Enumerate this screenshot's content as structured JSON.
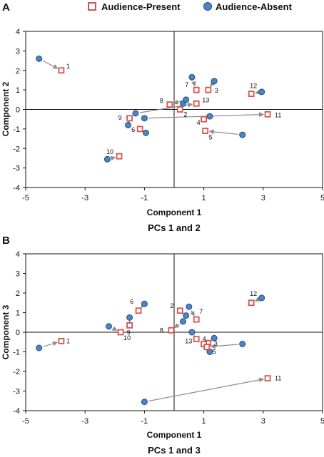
{
  "legend": [
    {
      "name": "Audience-Present",
      "marker": "square",
      "color": "#d9534f"
    },
    {
      "name": "Audience-Absent",
      "marker": "circle",
      "color": "#2e6da4"
    }
  ],
  "colors": {
    "present_stroke": "#d9534f",
    "absent_fill": "#4a86c5",
    "absent_stroke": "#1f4e7a",
    "arrow": "#8c8c8c",
    "axis": "#111111"
  },
  "chart_data": [
    {
      "type": "scatter",
      "panel": "A",
      "caption": "PCs 1 and 2",
      "xlabel": "Component 1",
      "ylabel": "Component 2",
      "xlim": [
        -5,
        5
      ],
      "ylim": [
        -4,
        4
      ],
      "xticks": [
        -5,
        -3,
        -1,
        1,
        3,
        5
      ],
      "yticks": [
        -4,
        -3,
        -2,
        -1,
        0,
        1,
        2,
        3,
        4
      ],
      "grid": false,
      "series": [
        {
          "name": "Audience-Absent",
          "points": [
            {
              "id": "1",
              "x": -4.55,
              "y": 2.6
            },
            {
              "id": "2",
              "x": 0.3,
              "y": 0.3
            },
            {
              "id": "3",
              "x": 1.35,
              "y": 1.45
            },
            {
              "id": "4",
              "x": 1.2,
              "y": -0.35
            },
            {
              "id": "5",
              "x": 2.3,
              "y": -1.3
            },
            {
              "id": "6",
              "x": -0.95,
              "y": -1.2
            },
            {
              "id": "7",
              "x": 0.6,
              "y": 1.65
            },
            {
              "id": "8",
              "x": 0.4,
              "y": 0.5
            },
            {
              "id": "9",
              "x": -1.55,
              "y": -0.8
            },
            {
              "id": "10",
              "x": -2.25,
              "y": -2.55
            },
            {
              "id": "11",
              "x": -1.0,
              "y": -0.45
            },
            {
              "id": "12",
              "x": 2.95,
              "y": 0.9
            },
            {
              "id": "13",
              "x": -1.3,
              "y": -0.2
            }
          ]
        },
        {
          "name": "Audience-Present",
          "points": [
            {
              "id": "1",
              "x": -3.8,
              "y": 2.0
            },
            {
              "id": "2",
              "x": 0.2,
              "y": 0.0
            },
            {
              "id": "3",
              "x": 1.15,
              "y": 1.0
            },
            {
              "id": "4",
              "x": 1.0,
              "y": -0.5
            },
            {
              "id": "5",
              "x": 1.05,
              "y": -1.1
            },
            {
              "id": "6",
              "x": -1.15,
              "y": -1.0
            },
            {
              "id": "7",
              "x": 0.75,
              "y": 1.0
            },
            {
              "id": "8",
              "x": -0.15,
              "y": 0.25
            },
            {
              "id": "9",
              "x": -1.5,
              "y": -0.45
            },
            {
              "id": "10",
              "x": -1.85,
              "y": -2.4
            },
            {
              "id": "11",
              "x": 3.15,
              "y": -0.25
            },
            {
              "id": "12",
              "x": 2.6,
              "y": 0.8
            },
            {
              "id": "13",
              "x": 0.75,
              "y": 0.3
            }
          ]
        }
      ]
    },
    {
      "type": "scatter",
      "panel": "B",
      "caption": "PCs 1 and 3",
      "xlabel": "Component 1",
      "ylabel": "Component 3",
      "xlim": [
        -5,
        5
      ],
      "ylim": [
        -4,
        4
      ],
      "xticks": [
        -5,
        -3,
        -1,
        1,
        3,
        5
      ],
      "yticks": [
        -4,
        -3,
        -2,
        -1,
        0,
        1,
        2,
        3,
        4
      ],
      "grid": false,
      "series": [
        {
          "name": "Audience-Absent",
          "points": [
            {
              "id": "1",
              "x": -4.55,
              "y": -0.8
            },
            {
              "id": "2",
              "x": 0.4,
              "y": 0.85
            },
            {
              "id": "3",
              "x": 1.35,
              "y": -0.3
            },
            {
              "id": "4",
              "x": 1.2,
              "y": -1.0
            },
            {
              "id": "5",
              "x": 2.3,
              "y": -0.6
            },
            {
              "id": "6",
              "x": -1.0,
              "y": 1.45
            },
            {
              "id": "7",
              "x": 0.5,
              "y": 1.3
            },
            {
              "id": "8",
              "x": 0.3,
              "y": 0.55
            },
            {
              "id": "9",
              "x": -1.5,
              "y": 0.75
            },
            {
              "id": "10",
              "x": -2.2,
              "y": 0.3
            },
            {
              "id": "11",
              "x": -1.0,
              "y": -3.55
            },
            {
              "id": "12",
              "x": 2.95,
              "y": 1.75
            },
            {
              "id": "13",
              "x": 0.6,
              "y": 0.0
            }
          ]
        },
        {
          "name": "Audience-Present",
          "points": [
            {
              "id": "1",
              "x": -3.8,
              "y": -0.45
            },
            {
              "id": "2",
              "x": 0.2,
              "y": 1.1
            },
            {
              "id": "3",
              "x": 1.15,
              "y": -0.55
            },
            {
              "id": "4",
              "x": 1.0,
              "y": -0.6
            },
            {
              "id": "5",
              "x": 1.1,
              "y": -0.75
            },
            {
              "id": "6",
              "x": -1.2,
              "y": 1.1
            },
            {
              "id": "7",
              "x": 0.75,
              "y": 0.65
            },
            {
              "id": "8",
              "x": -0.1,
              "y": 0.1
            },
            {
              "id": "9",
              "x": -1.5,
              "y": 0.35
            },
            {
              "id": "10",
              "x": -1.8,
              "y": 0.0
            },
            {
              "id": "11",
              "x": 3.15,
              "y": -2.35
            },
            {
              "id": "12",
              "x": 2.6,
              "y": 1.5
            },
            {
              "id": "13",
              "x": 0.75,
              "y": -0.35
            }
          ]
        }
      ]
    }
  ]
}
